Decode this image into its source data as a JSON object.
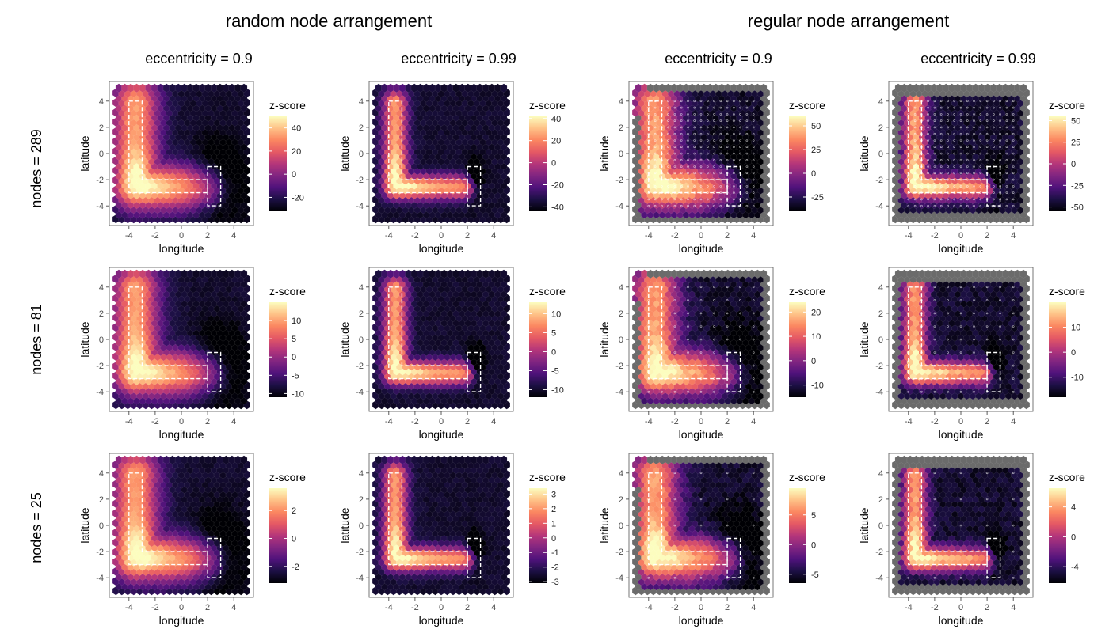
{
  "figure": {
    "group_titles": [
      "random node arrangement",
      "regular node arrangement"
    ],
    "column_titles": [
      "eccentricity = 0.9",
      "eccentricity = 0.99",
      "eccentricity = 0.9",
      "eccentricity = 0.99"
    ],
    "row_titles": [
      "nodes = 289",
      "nodes = 81",
      "nodes = 25"
    ]
  },
  "chart_data": [
    {
      "type": "heatmap",
      "panel": "r1c1",
      "xlabel": "longitude",
      "ylabel": "latitude",
      "xlim": [
        -5.5,
        5.5
      ],
      "ylim": [
        -5.5,
        5.5
      ],
      "x_ticks": [
        -4,
        -2,
        0,
        2,
        4
      ],
      "y_ticks": [
        -4,
        -2,
        0,
        2,
        4
      ],
      "legend_title": "z-score",
      "legend_range": [
        -32,
        50
      ],
      "legend_ticks": [
        -20,
        0,
        20,
        40
      ],
      "regions": [
        {
          "shape": "L",
          "x": [
            -4,
            -3,
            -3,
            2,
            2,
            -4
          ],
          "y": [
            4,
            4,
            -2,
            -2,
            -3,
            -3
          ]
        },
        {
          "shape": "rect",
          "x": [
            2,
            3
          ],
          "y": [
            -4,
            -1
          ]
        }
      ],
      "pattern": {
        "hot": [
          -3.2,
          -2.0
        ],
        "cold": [
          2.8,
          -2.2
        ],
        "eccentricity": 0.9,
        "grey_border": false,
        "node_markers": false
      }
    },
    {
      "type": "heatmap",
      "panel": "r1c2",
      "xlabel": "longitude",
      "ylabel": "latitude",
      "xlim": [
        -5.5,
        5.5
      ],
      "ylim": [
        -5.5,
        5.5
      ],
      "x_ticks": [
        -4,
        -2,
        0,
        2,
        4
      ],
      "y_ticks": [
        -4,
        -2,
        0,
        2,
        4
      ],
      "legend_title": "z-score",
      "legend_range": [
        -44,
        42
      ],
      "legend_ticks": [
        -40,
        -20,
        0,
        20,
        40
      ],
      "regions": [
        {
          "shape": "L",
          "x": [
            -4,
            -3,
            -3,
            2,
            2,
            -4
          ],
          "y": [
            4,
            4,
            -2,
            -2,
            -3,
            -3
          ]
        },
        {
          "shape": "rect",
          "x": [
            2,
            3
          ],
          "y": [
            -4,
            -1
          ]
        }
      ],
      "pattern": {
        "hot": [
          -3.2,
          -2.0
        ],
        "cold": [
          2.6,
          -2.0
        ],
        "eccentricity": 0.99,
        "grey_border": false,
        "node_markers": false
      }
    },
    {
      "type": "heatmap",
      "panel": "r1c3",
      "xlabel": "longitude",
      "ylabel": "latitude",
      "xlim": [
        -5.5,
        5.5
      ],
      "ylim": [
        -5.5,
        5.5
      ],
      "x_ticks": [
        -4,
        -2,
        0,
        2,
        4
      ],
      "y_ticks": [
        -4,
        -2,
        0,
        2,
        4
      ],
      "legend_title": "z-score",
      "legend_range": [
        -40,
        60
      ],
      "legend_ticks": [
        -25,
        0,
        25,
        50
      ],
      "regions": [
        {
          "shape": "L",
          "x": [
            -4,
            -3,
            -3,
            2,
            2,
            -4
          ],
          "y": [
            4,
            4,
            -2,
            -2,
            -3,
            -3
          ]
        },
        {
          "shape": "rect",
          "x": [
            2,
            3
          ],
          "y": [
            -4,
            -1
          ]
        }
      ],
      "pattern": {
        "hot": [
          -3.2,
          -2.0
        ],
        "cold": [
          2.8,
          -2.2
        ],
        "eccentricity": 0.9,
        "grey_border": true,
        "node_markers": true
      }
    },
    {
      "type": "heatmap",
      "panel": "r1c4",
      "xlabel": "longitude",
      "ylabel": "latitude",
      "xlim": [
        -5.5,
        5.5
      ],
      "ylim": [
        -5.5,
        5.5
      ],
      "x_ticks": [
        -4,
        -2,
        0,
        2,
        4
      ],
      "y_ticks": [
        -4,
        -2,
        0,
        2,
        4
      ],
      "legend_title": "z-score",
      "legend_range": [
        -55,
        55
      ],
      "legend_ticks": [
        -50,
        -25,
        0,
        25,
        50
      ],
      "regions": [
        {
          "shape": "L",
          "x": [
            -4,
            -3,
            -3,
            2,
            2,
            -4
          ],
          "y": [
            4,
            4,
            -2,
            -2,
            -3,
            -3
          ]
        },
        {
          "shape": "rect",
          "x": [
            2,
            3
          ],
          "y": [
            -4,
            -1
          ]
        }
      ],
      "pattern": {
        "hot": [
          -3.2,
          -2.0
        ],
        "cold": [
          2.6,
          -2.0
        ],
        "eccentricity": 0.99,
        "grey_border": true,
        "node_markers": true
      }
    },
    {
      "type": "heatmap",
      "panel": "r2c1",
      "xlabel": "longitude",
      "ylabel": "latitude",
      "xlim": [
        -5.5,
        5.5
      ],
      "ylim": [
        -5.5,
        5.5
      ],
      "x_ticks": [
        -4,
        -2,
        0,
        2,
        4
      ],
      "y_ticks": [
        -4,
        -2,
        0,
        2,
        4
      ],
      "legend_title": "z-score",
      "legend_range": [
        -11,
        15
      ],
      "legend_ticks": [
        -10,
        -5,
        0,
        5,
        10
      ],
      "regions": [
        {
          "shape": "L",
          "x": [
            -4,
            -3,
            -3,
            2,
            2,
            -4
          ],
          "y": [
            4,
            4,
            -2,
            -2,
            -3,
            -3
          ]
        },
        {
          "shape": "rect",
          "x": [
            2,
            3
          ],
          "y": [
            -4,
            -1
          ]
        }
      ],
      "pattern": {
        "hot": [
          -3.2,
          -2.0
        ],
        "cold": [
          2.8,
          -2.2
        ],
        "eccentricity": 0.9,
        "grey_border": false,
        "node_markers": false
      }
    },
    {
      "type": "heatmap",
      "panel": "r2c2",
      "xlabel": "longitude",
      "ylabel": "latitude",
      "xlim": [
        -5.5,
        5.5
      ],
      "ylim": [
        -5.5,
        5.5
      ],
      "x_ticks": [
        -4,
        -2,
        0,
        2,
        4
      ],
      "y_ticks": [
        -4,
        -2,
        0,
        2,
        4
      ],
      "legend_title": "z-score",
      "legend_range": [
        -12,
        13
      ],
      "legend_ticks": [
        -10,
        -5,
        0,
        5,
        10
      ],
      "regions": [
        {
          "shape": "L",
          "x": [
            -4,
            -3,
            -3,
            2,
            2,
            -4
          ],
          "y": [
            4,
            4,
            -2,
            -2,
            -3,
            -3
          ]
        },
        {
          "shape": "rect",
          "x": [
            2,
            3
          ],
          "y": [
            -4,
            -1
          ]
        }
      ],
      "pattern": {
        "hot": [
          -3.2,
          -2.0
        ],
        "cold": [
          2.6,
          -2.0
        ],
        "eccentricity": 0.99,
        "grey_border": false,
        "node_markers": false
      }
    },
    {
      "type": "heatmap",
      "panel": "r2c3",
      "xlabel": "longitude",
      "ylabel": "latitude",
      "xlim": [
        -5.5,
        5.5
      ],
      "ylim": [
        -5.5,
        5.5
      ],
      "x_ticks": [
        -4,
        -2,
        0,
        2,
        4
      ],
      "y_ticks": [
        -4,
        -2,
        0,
        2,
        4
      ],
      "legend_title": "z-score",
      "legend_range": [
        -15,
        24
      ],
      "legend_ticks": [
        -10,
        0,
        10,
        20
      ],
      "regions": [
        {
          "shape": "L",
          "x": [
            -4,
            -3,
            -3,
            2,
            2,
            -4
          ],
          "y": [
            4,
            4,
            -2,
            -2,
            -3,
            -3
          ]
        },
        {
          "shape": "rect",
          "x": [
            2,
            3
          ],
          "y": [
            -4,
            -1
          ]
        }
      ],
      "pattern": {
        "hot": [
          -3.2,
          -2.0
        ],
        "cold": [
          2.8,
          -2.2
        ],
        "eccentricity": 0.9,
        "grey_border": true,
        "node_markers": true
      }
    },
    {
      "type": "heatmap",
      "panel": "r2c4",
      "xlabel": "longitude",
      "ylabel": "latitude",
      "xlim": [
        -5.5,
        5.5
      ],
      "ylim": [
        -5.5,
        5.5
      ],
      "x_ticks": [
        -4,
        -2,
        0,
        2,
        4
      ],
      "y_ticks": [
        -4,
        -2,
        0,
        2,
        4
      ],
      "legend_title": "z-score",
      "legend_range": [
        -18,
        20
      ],
      "legend_ticks": [
        -10,
        0,
        10
      ],
      "regions": [
        {
          "shape": "L",
          "x": [
            -4,
            -3,
            -3,
            2,
            2,
            -4
          ],
          "y": [
            4,
            4,
            -2,
            -2,
            -3,
            -3
          ]
        },
        {
          "shape": "rect",
          "x": [
            2,
            3
          ],
          "y": [
            -4,
            -1
          ]
        }
      ],
      "pattern": {
        "hot": [
          -3.2,
          -2.0
        ],
        "cold": [
          2.6,
          -2.0
        ],
        "eccentricity": 0.99,
        "grey_border": true,
        "node_markers": true
      }
    },
    {
      "type": "heatmap",
      "panel": "r3c1",
      "xlabel": "longitude",
      "ylabel": "latitude",
      "xlim": [
        -5.5,
        5.5
      ],
      "ylim": [
        -5.5,
        5.5
      ],
      "x_ticks": [
        -4,
        -2,
        0,
        2,
        4
      ],
      "y_ticks": [
        -4,
        -2,
        0,
        2,
        4
      ],
      "legend_title": "z-score",
      "legend_range": [
        -3.2,
        3.6
      ],
      "legend_ticks": [
        -2,
        0,
        2
      ],
      "regions": [
        {
          "shape": "L",
          "x": [
            -4,
            -3,
            -3,
            2,
            2,
            -4
          ],
          "y": [
            4,
            4,
            -2,
            -2,
            -3,
            -3
          ]
        },
        {
          "shape": "rect",
          "x": [
            2,
            3
          ],
          "y": [
            -4,
            -1
          ]
        }
      ],
      "pattern": {
        "hot": [
          -3.2,
          -2.0
        ],
        "cold": [
          2.8,
          -2.2
        ],
        "eccentricity": 0.9,
        "grey_border": false,
        "node_markers": false
      }
    },
    {
      "type": "heatmap",
      "panel": "r3c2",
      "xlabel": "longitude",
      "ylabel": "latitude",
      "xlim": [
        -5.5,
        5.5
      ],
      "ylim": [
        -5.5,
        5.5
      ],
      "x_ticks": [
        -4,
        -2,
        0,
        2,
        4
      ],
      "y_ticks": [
        -4,
        -2,
        0,
        2,
        4
      ],
      "legend_title": "z-score",
      "legend_range": [
        -3.1,
        3.4
      ],
      "legend_ticks": [
        -3,
        -2,
        -1,
        0,
        1,
        2,
        3
      ],
      "regions": [
        {
          "shape": "L",
          "x": [
            -4,
            -3,
            -3,
            2,
            2,
            -4
          ],
          "y": [
            4,
            4,
            -2,
            -2,
            -3,
            -3
          ]
        },
        {
          "shape": "rect",
          "x": [
            2,
            3
          ],
          "y": [
            -4,
            -1
          ]
        }
      ],
      "pattern": {
        "hot": [
          -3.2,
          -2.0
        ],
        "cold": [
          2.6,
          -2.0
        ],
        "eccentricity": 0.99,
        "grey_border": false,
        "node_markers": false
      }
    },
    {
      "type": "heatmap",
      "panel": "r3c3",
      "xlabel": "longitude",
      "ylabel": "latitude",
      "xlim": [
        -5.5,
        5.5
      ],
      "ylim": [
        -5.5,
        5.5
      ],
      "x_ticks": [
        -4,
        -2,
        0,
        2,
        4
      ],
      "y_ticks": [
        -4,
        -2,
        0,
        2,
        4
      ],
      "legend_title": "z-score",
      "legend_range": [
        -6.5,
        9.5
      ],
      "legend_ticks": [
        -5,
        0,
        5
      ],
      "regions": [
        {
          "shape": "L",
          "x": [
            -4,
            -3,
            -3,
            2,
            2,
            -4
          ],
          "y": [
            4,
            4,
            -2,
            -2,
            -3,
            -3
          ]
        },
        {
          "shape": "rect",
          "x": [
            2,
            3
          ],
          "y": [
            -4,
            -1
          ]
        }
      ],
      "pattern": {
        "hot": [
          -3.2,
          -2.0
        ],
        "cold": [
          2.8,
          -2.2
        ],
        "eccentricity": 0.9,
        "grey_border": true,
        "node_markers": true
      }
    },
    {
      "type": "heatmap",
      "panel": "r3c4",
      "xlabel": "longitude",
      "ylabel": "latitude",
      "xlim": [
        -5.5,
        5.5
      ],
      "ylim": [
        -5.5,
        5.5
      ],
      "x_ticks": [
        -4,
        -2,
        0,
        2,
        4
      ],
      "y_ticks": [
        -4,
        -2,
        0,
        2,
        4
      ],
      "legend_title": "z-score",
      "legend_range": [
        -6.2,
        6.5
      ],
      "legend_ticks": [
        -4,
        0,
        4
      ],
      "regions": [
        {
          "shape": "L",
          "x": [
            -4,
            -3,
            -3,
            2,
            2,
            -4
          ],
          "y": [
            4,
            4,
            -2,
            -2,
            -3,
            -3
          ]
        },
        {
          "shape": "rect",
          "x": [
            2,
            3
          ],
          "y": [
            -4,
            -1
          ]
        }
      ],
      "pattern": {
        "hot": [
          -3.2,
          -2.0
        ],
        "cold": [
          2.6,
          -2.0
        ],
        "eccentricity": 0.99,
        "grey_border": true,
        "node_markers": true
      }
    }
  ],
  "colors": {
    "magma": [
      "#000004",
      "#1c1044",
      "#4f127b",
      "#812581",
      "#b5367a",
      "#e55964",
      "#fb8761",
      "#fec287",
      "#fcfdbf"
    ],
    "grey_node": "#6b6b6b",
    "panel_border": "#555555",
    "tick_text": "#4d4d4d"
  }
}
